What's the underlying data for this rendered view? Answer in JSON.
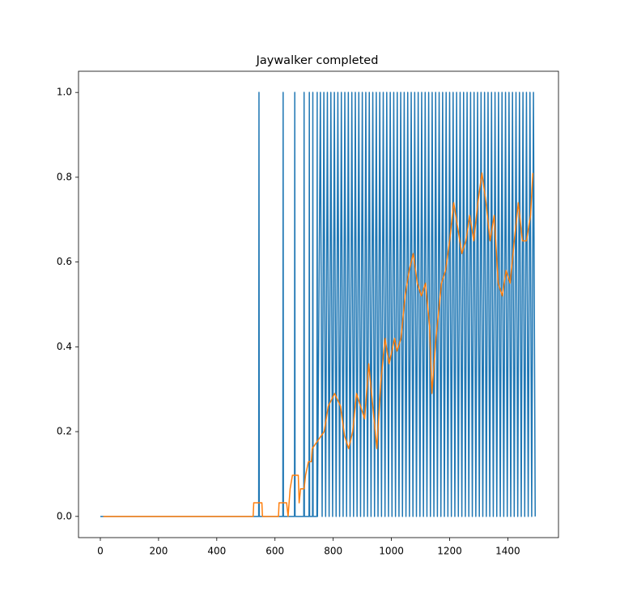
{
  "chart_data": {
    "type": "line",
    "title": "Jaywalker completed",
    "xlim": [
      -75,
      1574
    ],
    "ylim": [
      -0.05,
      1.05
    ],
    "xticks": [
      0,
      200,
      400,
      600,
      800,
      1000,
      1200,
      1400
    ],
    "yticks": [
      {
        "value": 0,
        "label": "0.0"
      },
      {
        "value": 0.2,
        "label": "0.2"
      },
      {
        "value": 0.4,
        "label": "0.4"
      },
      {
        "value": 0.6,
        "label": "0.6"
      },
      {
        "value": 0.8,
        "label": "0.8"
      },
      {
        "value": 1,
        "label": "1.0"
      }
    ],
    "series": [
      {
        "color": "#1f77b4",
        "x": [
          0,
          544,
          545,
          546,
          627,
          628,
          629,
          667,
          668,
          669,
          699,
          700,
          701,
          717,
          718,
          719,
          729,
          730,
          731,
          744,
          745,
          746,
          756,
          762,
          768,
          774,
          780,
          786,
          792,
          798,
          804,
          810,
          816,
          822,
          828,
          834,
          840,
          846,
          852,
          858,
          864,
          870,
          876,
          882,
          888,
          894,
          900,
          906,
          912,
          918,
          924,
          930,
          936,
          942,
          948,
          954,
          960,
          966,
          972,
          978,
          984,
          990,
          996,
          1002,
          1008,
          1014,
          1020,
          1026,
          1032,
          1038,
          1044,
          1050,
          1056,
          1062,
          1068,
          1074,
          1080,
          1086,
          1092,
          1098,
          1104,
          1110,
          1116,
          1122,
          1128,
          1134,
          1140,
          1146,
          1152,
          1158,
          1164,
          1170,
          1176,
          1182,
          1188,
          1194,
          1200,
          1206,
          1212,
          1218,
          1224,
          1230,
          1236,
          1242,
          1248,
          1254,
          1260,
          1266,
          1272,
          1278,
          1284,
          1290,
          1296,
          1302,
          1308,
          1314,
          1320,
          1326,
          1332,
          1338,
          1344,
          1350,
          1356,
          1362,
          1368,
          1374,
          1380,
          1386,
          1392,
          1398,
          1404,
          1410,
          1416,
          1422,
          1428,
          1434,
          1440,
          1446,
          1452,
          1458,
          1464,
          1470,
          1476,
          1482,
          1488,
          1494
        ],
        "values": [
          0,
          0,
          1,
          0,
          0,
          1,
          0,
          0,
          1,
          0,
          0,
          1,
          0,
          0,
          1,
          0,
          0,
          1,
          0,
          0,
          1,
          0,
          1,
          0,
          1,
          0,
          1,
          0,
          1,
          0,
          1,
          0,
          1,
          0,
          1,
          0,
          1,
          0,
          1,
          0,
          1,
          0,
          1,
          0,
          1,
          0,
          1,
          0,
          1,
          0,
          1,
          0,
          1,
          0,
          1,
          0,
          1,
          0,
          1,
          0,
          1,
          0,
          1,
          0,
          1,
          0,
          1,
          0,
          1,
          0,
          1,
          0,
          1,
          0,
          1,
          0,
          1,
          0,
          1,
          0,
          1,
          0,
          1,
          0,
          1,
          0,
          1,
          0,
          1,
          0,
          1,
          0,
          1,
          0,
          1,
          0,
          1,
          0,
          1,
          0,
          1,
          0,
          1,
          0,
          1,
          0,
          1,
          0,
          1,
          0,
          1,
          0,
          1,
          0,
          1,
          0,
          1,
          0,
          1,
          0,
          1,
          0,
          1,
          0,
          1,
          0,
          1,
          0,
          1,
          0,
          1,
          0,
          1,
          0,
          1,
          0,
          1,
          0,
          1,
          0,
          1,
          0,
          1,
          0,
          1,
          0
        ]
      },
      {
        "color": "#ff7f0e",
        "x": [
          10,
          525,
          527,
          555,
          557,
          612,
          614,
          640,
          645,
          652,
          660,
          680,
          683,
          688,
          700,
          705,
          715,
          725,
          728,
          769,
          783,
          805,
          825,
          839,
          853,
          867,
          880,
          894,
          908,
          922,
          936,
          950,
          964,
          978,
          992,
          1011,
          1019,
          1033,
          1047,
          1061,
          1075,
          1089,
          1103,
          1117,
          1131,
          1139,
          1153,
          1172,
          1186,
          1200,
          1214,
          1228,
          1242,
          1256,
          1269,
          1283,
          1297,
          1311,
          1325,
          1339,
          1353,
          1367,
          1381,
          1394,
          1408,
          1422,
          1436,
          1450,
          1464,
          1478,
          1486
        ],
        "values": [
          0,
          0,
          0.032,
          0.032,
          0,
          0,
          0.032,
          0.032,
          0,
          0.065,
          0.097,
          0.097,
          0.032,
          0.065,
          0.065,
          0.097,
          0.129,
          0.129,
          0.16,
          0.2,
          0.26,
          0.29,
          0.26,
          0.19,
          0.16,
          0.2,
          0.29,
          0.26,
          0.23,
          0.36,
          0.26,
          0.16,
          0.32,
          0.42,
          0.36,
          0.42,
          0.39,
          0.42,
          0.52,
          0.58,
          0.62,
          0.55,
          0.52,
          0.55,
          0.45,
          0.29,
          0.42,
          0.55,
          0.58,
          0.65,
          0.74,
          0.68,
          0.62,
          0.65,
          0.71,
          0.65,
          0.74,
          0.81,
          0.74,
          0.65,
          0.71,
          0.55,
          0.52,
          0.58,
          0.55,
          0.65,
          0.74,
          0.65,
          0.65,
          0.71,
          0.81
        ]
      }
    ]
  }
}
